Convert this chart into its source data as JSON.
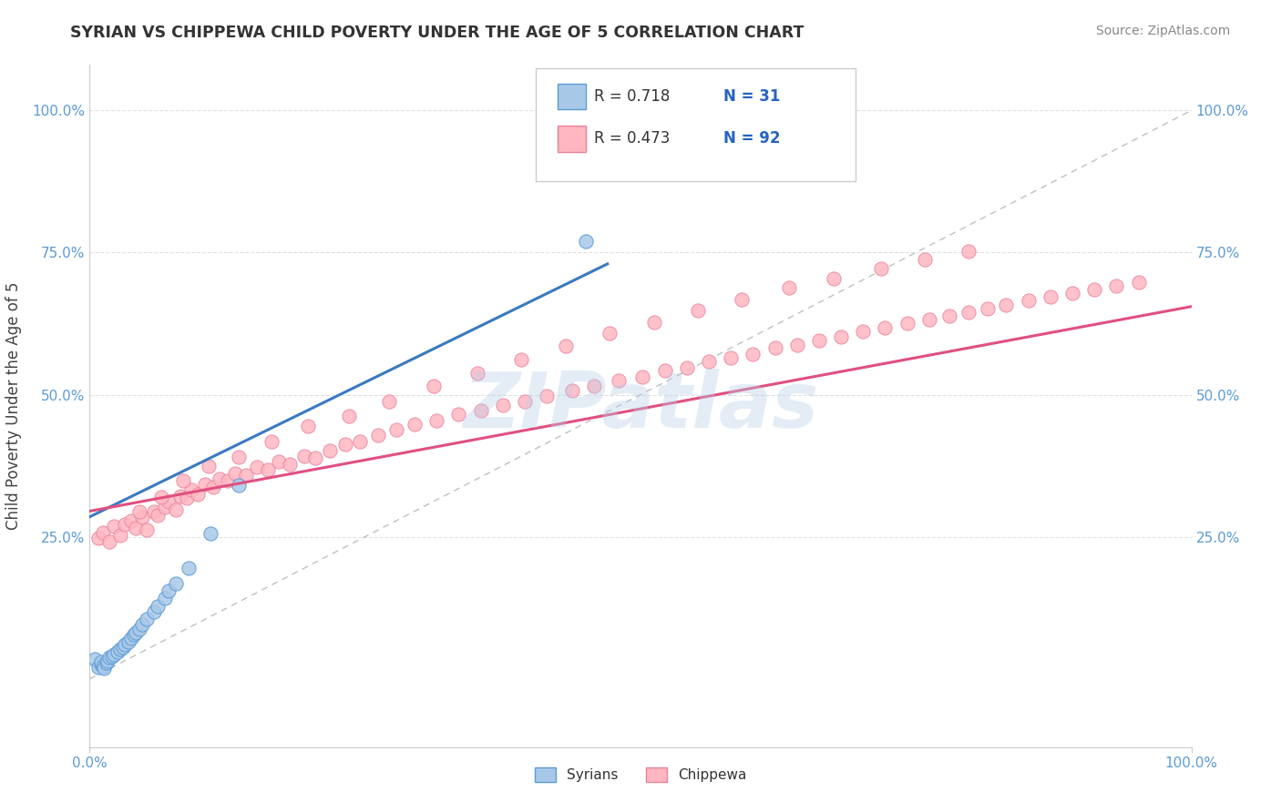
{
  "title": "SYRIAN VS CHIPPEWA CHILD POVERTY UNDER THE AGE OF 5 CORRELATION CHART",
  "source": "Source: ZipAtlas.com",
  "ylabel": "Child Poverty Under the Age of 5",
  "xlim": [
    0.0,
    1.0
  ],
  "ylim": [
    -0.05,
    1.05
  ],
  "plot_ylim": [
    0.0,
    1.0
  ],
  "xtick_positions": [
    0.0,
    1.0
  ],
  "xtick_labels": [
    "0.0%",
    "100.0%"
  ],
  "ytick_positions": [
    0.25,
    0.5,
    0.75,
    1.0
  ],
  "ytick_labels": [
    "25.0%",
    "50.0%",
    "75.0%",
    "100.0%"
  ],
  "legend_r1": "R = 0.718",
  "legend_n1": "N = 31",
  "legend_r2": "R = 0.473",
  "legend_n2": "N = 92",
  "watermark": "ZIPatlas",
  "blue_scatter_color": "#a8c8e8",
  "blue_edge_color": "#5b9bd5",
  "pink_scatter_color": "#ffb6c1",
  "pink_edge_color": "#e8829a",
  "blue_line_color": "#3a7abf",
  "pink_line_color": "#e05080",
  "diagonal_color": "#c0c0c0",
  "grid_color": "#e0e0e0",
  "tick_color": "#5b9bd5",
  "background_color": "#ffffff",
  "title_color": "#333333",
  "source_color": "#888888",
  "ylabel_color": "#444444",
  "legend_text_color": "#333333",
  "legend_value_color": "#2563c0",
  "syrians_x": [
    0.005,
    0.008,
    0.01,
    0.01,
    0.012,
    0.013,
    0.015,
    0.016,
    0.018,
    0.02,
    0.022,
    0.025,
    0.028,
    0.03,
    0.032,
    0.035,
    0.038,
    0.04,
    0.042,
    0.045,
    0.048,
    0.052,
    0.058,
    0.062,
    0.068,
    0.072,
    0.078,
    0.09,
    0.11,
    0.135,
    0.45
  ],
  "syrians_y": [
    0.035,
    0.02,
    0.025,
    0.03,
    0.022,
    0.018,
    0.028,
    0.032,
    0.038,
    0.04,
    0.042,
    0.048,
    0.052,
    0.055,
    0.06,
    0.065,
    0.072,
    0.078,
    0.082,
    0.088,
    0.095,
    0.105,
    0.118,
    0.128,
    0.142,
    0.155,
    0.168,
    0.195,
    0.255,
    0.34,
    0.77
  ],
  "chippewa_x": [
    0.008,
    0.012,
    0.018,
    0.022,
    0.028,
    0.032,
    0.038,
    0.042,
    0.048,
    0.052,
    0.058,
    0.062,
    0.068,
    0.072,
    0.078,
    0.082,
    0.088,
    0.092,
    0.098,
    0.105,
    0.112,
    0.118,
    0.125,
    0.132,
    0.142,
    0.152,
    0.162,
    0.172,
    0.182,
    0.195,
    0.205,
    0.218,
    0.232,
    0.245,
    0.262,
    0.278,
    0.295,
    0.315,
    0.335,
    0.355,
    0.375,
    0.395,
    0.415,
    0.438,
    0.458,
    0.48,
    0.502,
    0.522,
    0.542,
    0.562,
    0.582,
    0.602,
    0.622,
    0.642,
    0.662,
    0.682,
    0.702,
    0.722,
    0.742,
    0.762,
    0.78,
    0.798,
    0.815,
    0.832,
    0.852,
    0.872,
    0.892,
    0.912,
    0.932,
    0.952,
    0.045,
    0.065,
    0.085,
    0.108,
    0.135,
    0.165,
    0.198,
    0.235,
    0.272,
    0.312,
    0.352,
    0.392,
    0.432,
    0.472,
    0.512,
    0.552,
    0.592,
    0.635,
    0.675,
    0.718,
    0.758,
    0.798
  ],
  "chippewa_y": [
    0.248,
    0.258,
    0.242,
    0.268,
    0.252,
    0.272,
    0.278,
    0.265,
    0.285,
    0.262,
    0.295,
    0.288,
    0.302,
    0.312,
    0.298,
    0.322,
    0.318,
    0.332,
    0.325,
    0.342,
    0.338,
    0.352,
    0.348,
    0.362,
    0.358,
    0.372,
    0.368,
    0.382,
    0.378,
    0.392,
    0.388,
    0.402,
    0.412,
    0.418,
    0.428,
    0.438,
    0.448,
    0.455,
    0.465,
    0.472,
    0.482,
    0.488,
    0.498,
    0.508,
    0.515,
    0.525,
    0.532,
    0.542,
    0.548,
    0.558,
    0.565,
    0.572,
    0.582,
    0.588,
    0.595,
    0.602,
    0.612,
    0.618,
    0.625,
    0.632,
    0.638,
    0.645,
    0.652,
    0.658,
    0.665,
    0.672,
    0.678,
    0.685,
    0.692,
    0.698,
    0.295,
    0.32,
    0.348,
    0.375,
    0.39,
    0.418,
    0.445,
    0.462,
    0.488,
    0.515,
    0.538,
    0.562,
    0.585,
    0.608,
    0.628,
    0.648,
    0.668,
    0.688,
    0.705,
    0.722,
    0.738,
    0.752
  ],
  "blue_trend_x": [
    0.0,
    0.47
  ],
  "blue_trend_y": [
    0.285,
    0.73
  ],
  "pink_trend_x": [
    0.0,
    1.0
  ],
  "pink_trend_y": [
    0.295,
    0.655
  ]
}
